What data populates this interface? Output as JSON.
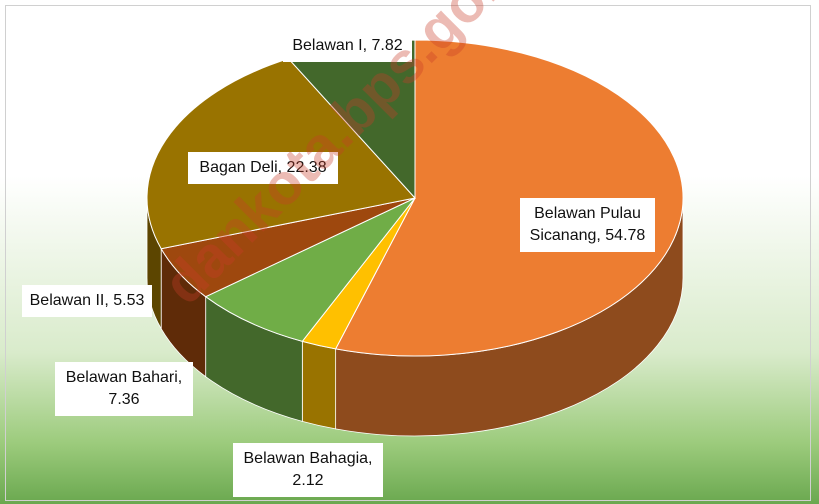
{
  "chart_data": {
    "type": "pie3d",
    "value_labels": [
      "Belawan Pulau Sicanang, 54.78",
      "Belawan Bahagia, 2.12",
      "Belawan Bahari, 7.36",
      "Belawan II, 5.53",
      "Bagan Deli, 22.38",
      "Belawan I, 7.82"
    ],
    "values": [
      54.78,
      2.12,
      7.36,
      5.53,
      22.38,
      7.82
    ],
    "colors": [
      "#ED7D31",
      "#FFC000",
      "#70AD47",
      "#9E480E",
      "#997300",
      "#43682B"
    ],
    "watermark": "dankota.bps.go.id"
  }
}
